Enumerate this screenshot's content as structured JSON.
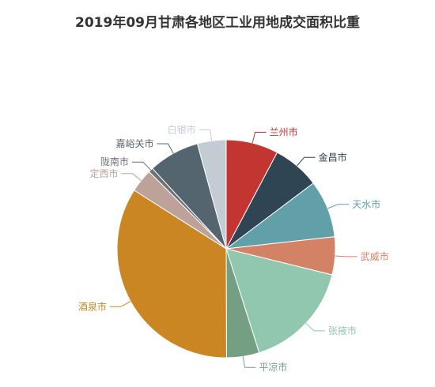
{
  "chart_data": {
    "type": "pie",
    "title": "2019年09月甘肃各地区工业用地成交面积比重",
    "slices": [
      {
        "name": "兰州市",
        "value": 8.0,
        "color": "#c23531"
      },
      {
        "name": "金昌市",
        "value": 7.2,
        "color": "#2f4554"
      },
      {
        "name": "天水市",
        "value": 8.8,
        "color": "#61a0a8"
      },
      {
        "name": "武威市",
        "value": 5.8,
        "color": "#d48265"
      },
      {
        "name": "张掖市",
        "value": 16.8,
        "color": "#91c7ae"
      },
      {
        "name": "平凉市",
        "value": 5.0,
        "color": "#749f83"
      },
      {
        "name": "酒泉市",
        "value": 35.2,
        "color": "#ca8622"
      },
      {
        "name": "定西市",
        "value": 3.6,
        "color": "#bda29a"
      },
      {
        "name": "陇南市",
        "value": 0.7,
        "color": "#6e7074"
      },
      {
        "name": "嘉峪关市",
        "value": 7.8,
        "color": "#546570"
      },
      {
        "name": "白银市",
        "value": 4.4,
        "color": "#c4ccd3"
      }
    ]
  }
}
